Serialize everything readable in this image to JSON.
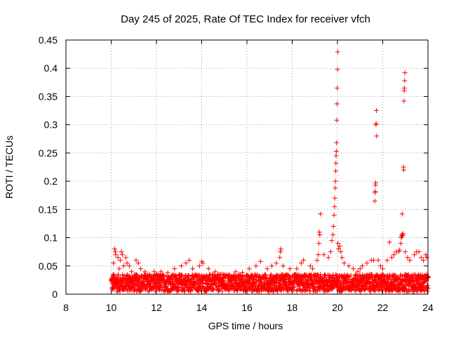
{
  "chart_data": {
    "type": "scatter",
    "title": "Day 245 of 2025, Rate Of TEC Index for receiver vfch",
    "xlabel": "GPS time / hours",
    "ylabel": "ROTI / TECUs",
    "xlim": [
      8,
      24
    ],
    "ylim": [
      0,
      0.45
    ],
    "x_ticks": [
      8,
      10,
      12,
      14,
      16,
      18,
      20,
      22,
      24
    ],
    "y_ticks": [
      0,
      0.05,
      0.1,
      0.15,
      0.2,
      0.25,
      0.3,
      0.35,
      0.4,
      0.45
    ],
    "x_tick_labels": [
      "8",
      "10",
      "12",
      "14",
      "16",
      "18",
      "20",
      "22",
      "24"
    ],
    "y_tick_labels": [
      "0",
      "0.05",
      "0.1",
      "0.15",
      "0.2",
      "0.25",
      "0.3",
      "0.35",
      "0.4",
      "0.45"
    ],
    "grid": true,
    "marker": "+",
    "color": "#ff0000",
    "background_band": {
      "x_range": [
        10.0,
        24.0
      ],
      "baseline_low": 0.005,
      "baseline_high": 0.035,
      "sample_step_hours": 0.02
    },
    "series": [
      {
        "name": "ROTI",
        "points": [
          [
            10.05,
            0.02
          ],
          [
            10.08,
            0.035
          ],
          [
            10.1,
            0.055
          ],
          [
            10.15,
            0.08
          ],
          [
            10.18,
            0.075
          ],
          [
            10.2,
            0.07
          ],
          [
            10.3,
            0.065
          ],
          [
            10.35,
            0.045
          ],
          [
            10.4,
            0.06
          ],
          [
            10.45,
            0.075
          ],
          [
            10.5,
            0.07
          ],
          [
            10.55,
            0.05
          ],
          [
            10.65,
            0.065
          ],
          [
            10.7,
            0.055
          ],
          [
            10.8,
            0.05
          ],
          [
            10.9,
            0.04
          ],
          [
            11.1,
            0.06
          ],
          [
            11.2,
            0.055
          ],
          [
            11.3,
            0.045
          ],
          [
            11.5,
            0.04
          ],
          [
            11.7,
            0.035
          ],
          [
            11.9,
            0.04
          ],
          [
            12.2,
            0.04
          ],
          [
            12.5,
            0.038
          ],
          [
            12.8,
            0.045
          ],
          [
            13.1,
            0.05
          ],
          [
            13.3,
            0.055
          ],
          [
            13.45,
            0.06
          ],
          [
            13.6,
            0.045
          ],
          [
            13.9,
            0.05
          ],
          [
            14.0,
            0.058
          ],
          [
            14.05,
            0.055
          ],
          [
            14.3,
            0.045
          ],
          [
            14.6,
            0.04
          ],
          [
            14.9,
            0.035
          ],
          [
            15.2,
            0.035
          ],
          [
            15.5,
            0.04
          ],
          [
            15.8,
            0.038
          ],
          [
            16.1,
            0.045
          ],
          [
            16.4,
            0.05
          ],
          [
            16.6,
            0.058
          ],
          [
            16.9,
            0.045
          ],
          [
            17.1,
            0.05
          ],
          [
            17.3,
            0.055
          ],
          [
            17.45,
            0.065
          ],
          [
            17.48,
            0.075
          ],
          [
            17.5,
            0.08
          ],
          [
            17.6,
            0.05
          ],
          [
            17.9,
            0.045
          ],
          [
            18.2,
            0.045
          ],
          [
            18.4,
            0.055
          ],
          [
            18.5,
            0.06
          ],
          [
            18.8,
            0.05
          ],
          [
            18.9,
            0.045
          ],
          [
            19.1,
            0.06
          ],
          [
            19.15,
            0.07
          ],
          [
            19.18,
            0.09
          ],
          [
            19.2,
            0.11
          ],
          [
            19.22,
            0.105
          ],
          [
            19.25,
            0.142
          ],
          [
            19.4,
            0.07
          ],
          [
            19.6,
            0.065
          ],
          [
            19.7,
            0.075
          ],
          [
            19.75,
            0.095
          ],
          [
            19.8,
            0.105
          ],
          [
            19.82,
            0.12
          ],
          [
            19.85,
            0.14
          ],
          [
            19.87,
            0.155
          ],
          [
            19.88,
            0.17
          ],
          [
            19.9,
            0.188
          ],
          [
            19.91,
            0.2
          ],
          [
            19.92,
            0.218
          ],
          [
            19.93,
            0.232
          ],
          [
            19.94,
            0.245
          ],
          [
            19.95,
            0.253
          ],
          [
            19.96,
            0.268
          ],
          [
            19.97,
            0.308
          ],
          [
            19.98,
            0.337
          ],
          [
            19.99,
            0.365
          ],
          [
            20.0,
            0.398
          ],
          [
            20.01,
            0.429
          ],
          [
            20.02,
            0.09
          ],
          [
            20.05,
            0.08
          ],
          [
            20.1,
            0.085
          ],
          [
            20.15,
            0.075
          ],
          [
            20.2,
            0.065
          ],
          [
            20.3,
            0.055
          ],
          [
            20.5,
            0.05
          ],
          [
            20.7,
            0.045
          ],
          [
            20.9,
            0.04
          ],
          [
            21.0,
            0.045
          ],
          [
            21.1,
            0.05
          ],
          [
            21.3,
            0.055
          ],
          [
            21.5,
            0.06
          ],
          [
            21.6,
            0.06
          ],
          [
            21.65,
            0.165
          ],
          [
            21.66,
            0.18
          ],
          [
            21.67,
            0.182
          ],
          [
            21.68,
            0.193
          ],
          [
            21.69,
            0.197
          ],
          [
            21.7,
            0.3
          ],
          [
            21.71,
            0.302
          ],
          [
            21.72,
            0.325
          ],
          [
            21.73,
            0.28
          ],
          [
            21.8,
            0.06
          ],
          [
            21.9,
            0.05
          ],
          [
            22.0,
            0.045
          ],
          [
            22.2,
            0.06
          ],
          [
            22.3,
            0.092
          ],
          [
            22.4,
            0.065
          ],
          [
            22.5,
            0.07
          ],
          [
            22.6,
            0.075
          ],
          [
            22.7,
            0.075
          ],
          [
            22.75,
            0.078
          ],
          [
            22.8,
            0.09
          ],
          [
            22.82,
            0.1
          ],
          [
            22.84,
            0.102
          ],
          [
            22.85,
            0.105
          ],
          [
            22.86,
            0.142
          ],
          [
            22.88,
            0.104
          ],
          [
            22.9,
            0.107
          ],
          [
            22.92,
            0.225
          ],
          [
            22.93,
            0.22
          ],
          [
            22.94,
            0.342
          ],
          [
            22.95,
            0.36
          ],
          [
            22.96,
            0.365
          ],
          [
            22.97,
            0.378
          ],
          [
            22.98,
            0.392
          ],
          [
            23.0,
            0.075
          ],
          [
            23.1,
            0.065
          ],
          [
            23.2,
            0.06
          ],
          [
            23.4,
            0.07
          ],
          [
            23.5,
            0.075
          ],
          [
            23.6,
            0.075
          ],
          [
            23.7,
            0.065
          ],
          [
            23.8,
            0.06
          ],
          [
            23.9,
            0.07
          ],
          [
            23.95,
            0.065
          ]
        ]
      }
    ]
  }
}
